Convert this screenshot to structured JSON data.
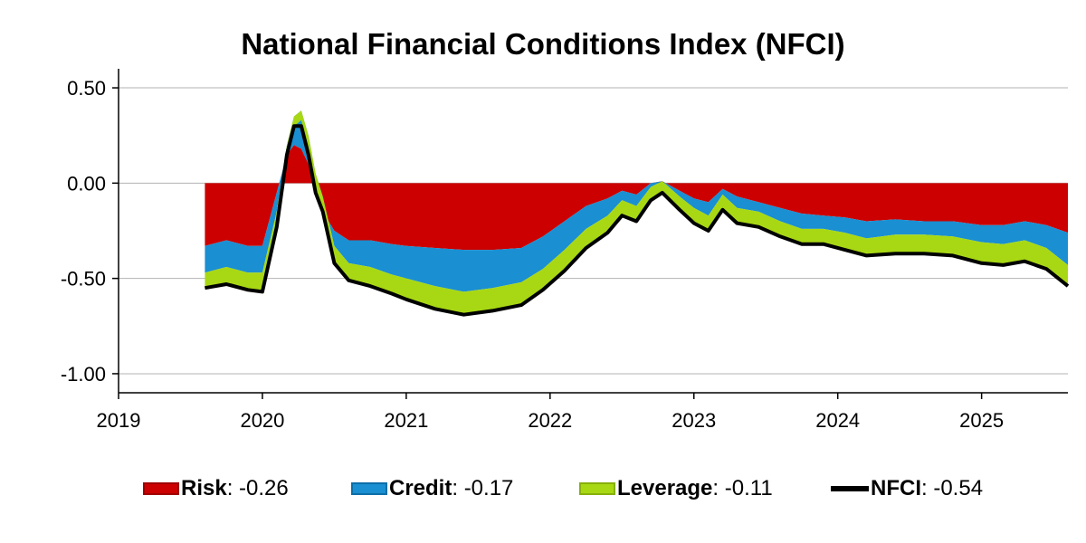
{
  "chart_data": {
    "type": "area",
    "stacked": true,
    "title": "National Financial Conditions Index (NFCI)",
    "xlabel": "",
    "ylabel": "",
    "xlim": [
      2019.0,
      2025.6
    ],
    "ylim": [
      -1.1,
      0.6
    ],
    "y_ticks": [
      0.5,
      0.0,
      -0.5,
      -1.0
    ],
    "y_tick_labels": [
      "0.50",
      "0.00",
      "-0.50",
      "-1.00"
    ],
    "x_ticks": [
      2019,
      2020,
      2021,
      2022,
      2023,
      2024,
      2025
    ],
    "x_tick_labels": [
      "2019",
      "2020",
      "2021",
      "2022",
      "2023",
      "2024",
      "2025"
    ],
    "grid": "horizontal",
    "legend_position": "bottom",
    "colors": {
      "risk": "#cc0000",
      "credit": "#1a8fd1",
      "leverage": "#a8d814",
      "nfci": "#000000",
      "grid": "#b3b3b3"
    },
    "x": [
      2019.6,
      2019.75,
      2019.9,
      2020.0,
      2020.1,
      2020.17,
      2020.22,
      2020.27,
      2020.32,
      2020.37,
      2020.42,
      2020.5,
      2020.6,
      2020.75,
      2020.9,
      2021.0,
      2021.2,
      2021.4,
      2021.6,
      2021.8,
      2021.95,
      2022.1,
      2022.25,
      2022.4,
      2022.5,
      2022.6,
      2022.7,
      2022.78,
      2022.9,
      2023.0,
      2023.1,
      2023.2,
      2023.3,
      2023.45,
      2023.6,
      2023.75,
      2023.9,
      2024.05,
      2024.2,
      2024.4,
      2024.6,
      2024.8,
      2025.0,
      2025.15,
      2025.3,
      2025.45,
      2025.6
    ],
    "series": [
      {
        "name": "Risk",
        "legend_value": "-0.26",
        "values": [
          -0.33,
          -0.3,
          -0.33,
          -0.33,
          -0.05,
          0.15,
          0.2,
          0.18,
          0.1,
          -0.05,
          -0.15,
          -0.25,
          -0.3,
          -0.3,
          -0.32,
          -0.33,
          -0.34,
          -0.35,
          -0.35,
          -0.34,
          -0.28,
          -0.2,
          -0.12,
          -0.08,
          -0.04,
          -0.06,
          0.0,
          0.01,
          -0.04,
          -0.08,
          -0.1,
          -0.03,
          -0.07,
          -0.1,
          -0.13,
          -0.16,
          -0.17,
          -0.18,
          -0.2,
          -0.19,
          -0.2,
          -0.2,
          -0.22,
          -0.22,
          -0.2,
          -0.22,
          -0.26
        ]
      },
      {
        "name": "Credit",
        "legend_value": "-0.17",
        "values": [
          -0.14,
          -0.14,
          -0.14,
          -0.14,
          -0.1,
          0.05,
          0.15,
          0.2,
          0.15,
          0.1,
          0.08,
          -0.08,
          -0.12,
          -0.14,
          -0.16,
          -0.17,
          -0.2,
          -0.22,
          -0.2,
          -0.18,
          -0.17,
          -0.15,
          -0.12,
          -0.09,
          -0.05,
          -0.06,
          -0.02,
          0.0,
          -0.03,
          -0.05,
          -0.07,
          -0.03,
          -0.06,
          -0.05,
          -0.07,
          -0.08,
          -0.07,
          -0.08,
          -0.09,
          -0.08,
          -0.07,
          -0.08,
          -0.09,
          -0.1,
          -0.1,
          -0.12,
          -0.17
        ]
      },
      {
        "name": "Leverage",
        "legend_value": "-0.11",
        "values": [
          -0.08,
          -0.09,
          -0.09,
          -0.1,
          -0.08,
          -0.05,
          -0.05,
          -0.05,
          -0.06,
          -0.07,
          -0.08,
          -0.09,
          -0.09,
          -0.1,
          -0.1,
          -0.11,
          -0.12,
          -0.12,
          -0.12,
          -0.12,
          -0.11,
          -0.11,
          -0.1,
          -0.09,
          -0.08,
          -0.08,
          -0.07,
          -0.06,
          -0.07,
          -0.08,
          -0.08,
          -0.08,
          -0.08,
          -0.08,
          -0.08,
          -0.08,
          -0.08,
          -0.09,
          -0.09,
          -0.1,
          -0.1,
          -0.1,
          -0.11,
          -0.11,
          -0.11,
          -0.11,
          -0.11
        ]
      },
      {
        "name": "NFCI",
        "legend_value": "-0.54",
        "type": "line",
        "values": [
          -0.55,
          -0.53,
          -0.56,
          -0.57,
          -0.23,
          0.15,
          0.3,
          0.3,
          0.15,
          -0.05,
          -0.15,
          -0.42,
          -0.51,
          -0.54,
          -0.58,
          -0.61,
          -0.66,
          -0.69,
          -0.67,
          -0.64,
          -0.56,
          -0.46,
          -0.34,
          -0.26,
          -0.17,
          -0.2,
          -0.09,
          -0.05,
          -0.14,
          -0.21,
          -0.25,
          -0.14,
          -0.21,
          -0.23,
          -0.28,
          -0.32,
          -0.32,
          -0.35,
          -0.38,
          -0.37,
          -0.37,
          -0.38,
          -0.42,
          -0.43,
          -0.41,
          -0.45,
          -0.54
        ]
      }
    ]
  }
}
